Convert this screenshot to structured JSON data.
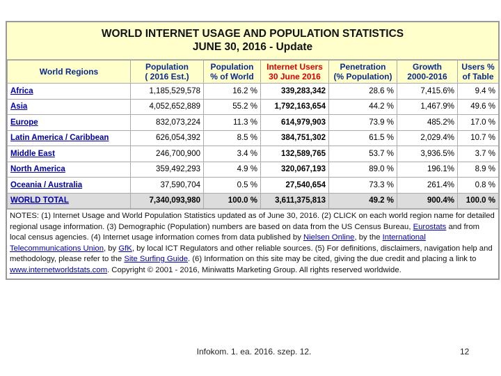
{
  "title": [
    "WORLD INTERNET USAGE AND POPULATION STATISTICS",
    "JUNE 30, 2016 - Update"
  ],
  "table": {
    "header": [
      [
        "World Regions"
      ],
      [
        "Population",
        "( 2016 Est.)"
      ],
      [
        "Population",
        "% of World"
      ],
      [
        "Internet Users",
        "30 June 2016"
      ],
      [
        "Penetration",
        "(% Population)"
      ],
      [
        "Growth",
        "2000-2016"
      ],
      [
        "Users %",
        "of Table"
      ]
    ],
    "rows": [
      [
        "Africa",
        "1,185,529,578",
        "16.2 %",
        "339,283,342",
        "28.6 %",
        "7,415.6%",
        "9.4 %"
      ],
      [
        "Asia",
        "4,052,652,889",
        "55.2 %",
        "1,792,163,654",
        "44.2 %",
        "1,467.9%",
        "49.6 %"
      ],
      [
        "Europe",
        "832,073,224",
        "11.3 %",
        "614,979,903",
        "73.9 %",
        "485.2%",
        "17.0 %"
      ],
      [
        "Latin America / Caribbean",
        "626,054,392",
        "8.5 %",
        "384,751,302",
        "61.5 %",
        "2,029.4%",
        "10.7 %"
      ],
      [
        "Middle East",
        "246,700,900",
        "3.4 %",
        "132,589,765",
        "53.7 %",
        "3,936.5%",
        "3.7 %"
      ],
      [
        "North America",
        "359,492,293",
        "4.9 %",
        "320,067,193",
        "89.0 %",
        "196.1%",
        "8.9 %"
      ],
      [
        "Oceania / Australia",
        "37,590,704",
        "0.5 %",
        "27,540,654",
        "73.3 %",
        "261.4%",
        "0.8 %"
      ]
    ],
    "total": [
      "WORLD TOTAL",
      "7,340,093,980",
      "100.0 %",
      "3,611,375,813",
      "49.2 %",
      "900.4%",
      "100.0 %"
    ]
  },
  "notes": [
    {
      "text": "NOTES: (1) Internet Usage and World Population Statistics updated as of June 30, 2016. (2) CLICK on each world region name for detailed regional usage information. (3) Demographic (Population) numbers are based on data from the US Census Bureau, "
    },
    {
      "text": "Eurostats",
      "link": true
    },
    {
      "text": " and from local census agencies. (4) Internet usage information comes from data published by "
    },
    {
      "text": "Nielsen Online",
      "link": true
    },
    {
      "text": ", by the "
    },
    {
      "text": "International Telecommunications Union",
      "link": true
    },
    {
      "text": ", by "
    },
    {
      "text": "GfK",
      "link": true
    },
    {
      "text": ", by local ICT Regulators and other reliable sources. (5) For definitions, disclaimers, navigation help and methodology, please refer to the "
    },
    {
      "text": "Site Surfing Guide",
      "link": true
    },
    {
      "text": ". (6) Information on this site may be cited, giving the due credit and placing a link to "
    },
    {
      "text": "www.internetworldstats.com",
      "link": true
    },
    {
      "text": ". Copyright © 2001 - 2016, Miniwatts Marketing Group. All rights reserved worldwide."
    }
  ],
  "footer": {
    "caption": "Infokom. 1. ea. 2016. szep. 12.",
    "page": "12"
  }
}
